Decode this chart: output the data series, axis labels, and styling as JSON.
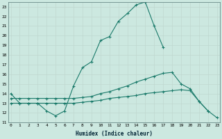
{
  "xlabel": "Humidex (Indice chaleur)",
  "bg_color": "#cce8e0",
  "grid_color": "#aacccc",
  "line_color": "#1a7a6a",
  "xlim": [
    0,
    23
  ],
  "ylim": [
    11,
    23.5
  ],
  "yticks": [
    11,
    12,
    13,
    14,
    15,
    16,
    17,
    18,
    19,
    20,
    21,
    22,
    23
  ],
  "xticks": [
    0,
    1,
    2,
    3,
    4,
    5,
    6,
    7,
    8,
    9,
    10,
    11,
    12,
    13,
    14,
    15,
    16,
    17,
    18,
    19,
    20,
    21,
    22,
    23
  ],
  "line1_x": [
    0,
    1,
    2,
    3,
    4,
    5,
    6,
    7,
    8,
    9,
    10,
    11,
    12,
    13,
    14,
    15,
    16,
    17,
    18,
    19,
    20,
    21,
    22,
    23
  ],
  "line1_y": [
    14.0,
    13.0,
    13.0,
    13.0,
    12.2,
    11.7,
    12.2,
    14.8,
    16.7,
    17.3,
    19.5,
    19.9,
    21.5,
    22.3,
    23.2,
    23.5,
    21.0,
    18.8,
    null,
    null,
    null,
    null,
    null,
    null
  ],
  "line2_x": [
    0,
    1,
    2,
    3,
    4,
    5,
    6,
    7,
    8,
    9,
    10,
    11,
    12,
    13,
    14,
    15,
    16,
    17,
    18,
    19,
    20,
    21,
    22,
    23
  ],
  "line2_y": [
    13.5,
    13.5,
    13.5,
    13.5,
    13.5,
    13.5,
    13.5,
    13.5,
    13.6,
    13.7,
    14.0,
    14.2,
    14.5,
    14.8,
    15.2,
    15.5,
    15.8,
    16.1,
    16.2,
    15.0,
    14.5,
    13.2,
    12.2,
    null
  ],
  "line3_x": [
    0,
    1,
    2,
    3,
    4,
    5,
    6,
    7,
    8,
    9,
    10,
    11,
    12,
    13,
    14,
    15,
    16,
    17,
    18,
    19,
    20,
    21,
    22,
    23
  ],
  "line3_y": [
    13.0,
    13.0,
    13.0,
    13.0,
    13.0,
    13.0,
    13.0,
    13.0,
    13.1,
    13.2,
    13.3,
    13.5,
    13.6,
    13.7,
    13.8,
    14.0,
    14.1,
    14.2,
    14.3,
    14.4,
    14.3,
    13.2,
    12.2,
    11.5
  ]
}
